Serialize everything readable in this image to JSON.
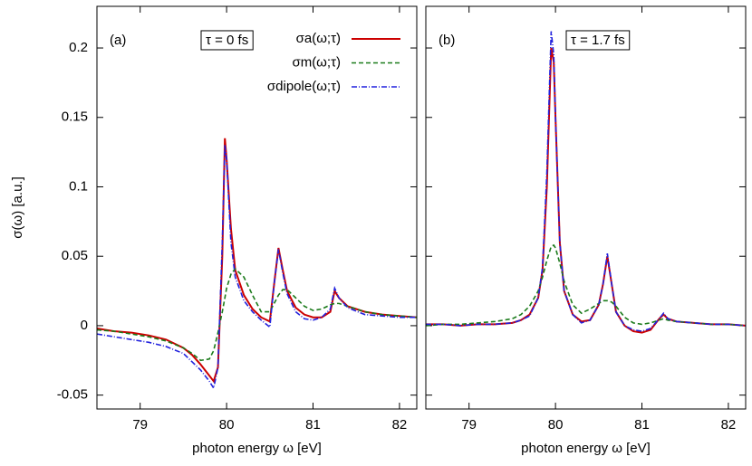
{
  "chart_data": [
    {
      "type": "line",
      "panel_label": "(a)",
      "annotation": "τ = 0 fs",
      "x_label": "photon energy ω [eV]",
      "y_label": "σ(ω) [a.u.]",
      "xlim": [
        78.5,
        82.2
      ],
      "xticks": [
        79,
        80,
        81,
        82
      ],
      "ylim": [
        -0.06,
        0.23
      ],
      "yticks": [
        -0.05,
        0,
        0.05,
        0.1,
        0.15,
        0.2
      ],
      "show_ytick_labels": true,
      "legend": true,
      "legend_position": "upper right",
      "x": [
        78.5,
        78.7,
        78.9,
        79.1,
        79.3,
        79.5,
        79.6,
        79.7,
        79.8,
        79.85,
        79.9,
        79.95,
        79.98,
        80.0,
        80.05,
        80.1,
        80.2,
        80.3,
        80.4,
        80.5,
        80.55,
        80.6,
        80.65,
        80.7,
        80.8,
        80.9,
        81.0,
        81.1,
        81.2,
        81.25,
        81.3,
        81.4,
        81.6,
        81.8,
        82.0,
        82.2
      ],
      "series": [
        {
          "name": "σa(ω;τ)",
          "color": "#cc0000",
          "line_style": "solid",
          "values": [
            -0.002,
            -0.004,
            -0.005,
            -0.007,
            -0.01,
            -0.016,
            -0.021,
            -0.028,
            -0.036,
            -0.04,
            -0.03,
            0.05,
            0.135,
            0.12,
            0.07,
            0.04,
            0.022,
            0.012,
            0.006,
            0.003,
            0.03,
            0.056,
            0.04,
            0.025,
            0.013,
            0.008,
            0.006,
            0.006,
            0.01,
            0.025,
            0.02,
            0.014,
            0.01,
            0.008,
            0.007,
            0.006
          ]
        },
        {
          "name": "σm(ω;τ)",
          "color": "#1a7a1a",
          "line_style": "dashed",
          "values": [
            -0.003,
            -0.004,
            -0.006,
            -0.008,
            -0.011,
            -0.016,
            -0.02,
            -0.025,
            -0.024,
            -0.018,
            -0.005,
            0.01,
            0.02,
            0.027,
            0.037,
            0.041,
            0.035,
            0.022,
            0.01,
            0.01,
            0.016,
            0.022,
            0.026,
            0.026,
            0.02,
            0.014,
            0.011,
            0.012,
            0.015,
            0.016,
            0.016,
            0.014,
            0.01,
            0.008,
            0.007,
            0.006
          ]
        },
        {
          "name": "σdipole(ω;τ)",
          "color": "#2222dd",
          "line_style": "dashdot",
          "values": [
            -0.006,
            -0.008,
            -0.01,
            -0.012,
            -0.015,
            -0.02,
            -0.026,
            -0.032,
            -0.04,
            -0.045,
            -0.03,
            0.06,
            0.13,
            0.12,
            0.06,
            0.035,
            0.018,
            0.01,
            0.004,
            -0.001,
            0.03,
            0.055,
            0.038,
            0.023,
            0.01,
            0.005,
            0.004,
            0.006,
            0.012,
            0.027,
            0.02,
            0.013,
            0.008,
            0.007,
            0.006,
            0.006
          ]
        }
      ]
    },
    {
      "type": "line",
      "panel_label": "(b)",
      "annotation": "τ = 1.7 fs",
      "x_label": "photon energy ω [eV]",
      "xlim": [
        78.5,
        82.2
      ],
      "xticks": [
        79,
        80,
        81,
        82
      ],
      "ylim": [
        -0.06,
        0.23
      ],
      "yticks": [
        -0.05,
        0,
        0.05,
        0.1,
        0.15,
        0.2
      ],
      "show_ytick_labels": false,
      "legend": false,
      "x": [
        78.5,
        78.7,
        78.9,
        79.1,
        79.3,
        79.5,
        79.6,
        79.7,
        79.8,
        79.85,
        79.9,
        79.95,
        79.98,
        80.0,
        80.05,
        80.1,
        80.2,
        80.3,
        80.4,
        80.5,
        80.55,
        80.6,
        80.65,
        80.7,
        80.8,
        80.9,
        81.0,
        81.1,
        81.2,
        81.25,
        81.3,
        81.4,
        81.6,
        81.8,
        82.0,
        82.2
      ],
      "series": [
        {
          "color": "#cc0000",
          "line_style": "solid",
          "values": [
            0.001,
            0.001,
            0,
            0.001,
            0.001,
            0.002,
            0.004,
            0.008,
            0.02,
            0.04,
            0.1,
            0.2,
            0.19,
            0.15,
            0.06,
            0.025,
            0.008,
            0.003,
            0.004,
            0.015,
            0.03,
            0.05,
            0.03,
            0.01,
            0,
            -0.004,
            -0.005,
            -0.003,
            0.005,
            0.008,
            0.005,
            0.003,
            0.002,
            0.001,
            0.001,
            0
          ]
        },
        {
          "color": "#1a7a1a",
          "line_style": "dashed",
          "values": [
            0,
            0.001,
            0.001,
            0.002,
            0.003,
            0.005,
            0.008,
            0.014,
            0.025,
            0.035,
            0.047,
            0.057,
            0.058,
            0.056,
            0.045,
            0.032,
            0.015,
            0.009,
            0.012,
            0.016,
            0.018,
            0.018,
            0.017,
            0.014,
            0.006,
            0.002,
            0.001,
            0.002,
            0.004,
            0.005,
            0.004,
            0.003,
            0.002,
            0.001,
            0.001,
            0
          ]
        },
        {
          "color": "#2222dd",
          "line_style": "dashdot",
          "values": [
            0.001,
            0.001,
            0,
            0.001,
            0.001,
            0.002,
            0.004,
            0.007,
            0.02,
            0.042,
            0.11,
            0.212,
            0.195,
            0.15,
            0.06,
            0.025,
            0.008,
            0.002,
            0.004,
            0.015,
            0.03,
            0.052,
            0.03,
            0.01,
            0,
            -0.003,
            -0.004,
            -0.002,
            0.005,
            0.009,
            0.005,
            0.003,
            0.002,
            0.001,
            0.001,
            0
          ]
        }
      ]
    }
  ]
}
